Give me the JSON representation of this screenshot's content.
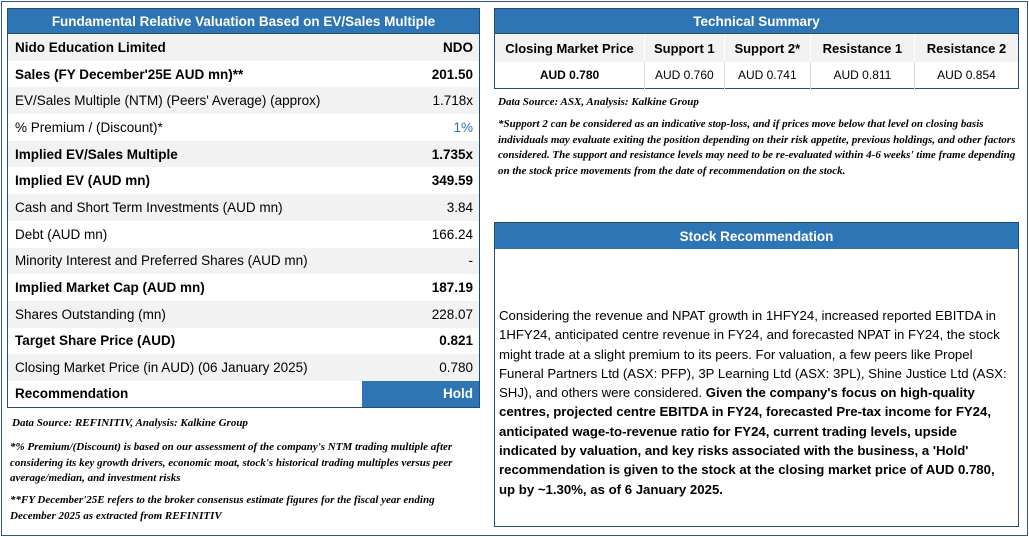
{
  "valuation": {
    "title": "Fundamental Relative Valuation Based on EV/Sales Multiple",
    "rows": [
      {
        "label": "Nido Education Limited",
        "value": "NDO"
      },
      {
        "label": "Sales (FY December'25E AUD mn)**",
        "value": "201.50"
      },
      {
        "label": "EV/Sales Multiple (NTM)  (Peers' Average) (approx)",
        "value": "1.718x"
      },
      {
        "label": "% Premium / (Discount)*",
        "value": "1%"
      },
      {
        "label": "Implied EV/Sales Multiple",
        "value": "1.735x"
      },
      {
        "label": "Implied EV (AUD mn)",
        "value": "349.59"
      },
      {
        "label": "Cash and Short Term Investments (AUD mn)",
        "value": "3.84"
      },
      {
        "label": "Debt (AUD mn)",
        "value": "166.24"
      },
      {
        "label": "Minority Interest and Preferred Shares (AUD mn)",
        "value": "-"
      },
      {
        "label": "Implied Market Cap (AUD mn)",
        "value": "187.19"
      },
      {
        "label": "Shares Outstanding (mn)",
        "value": "228.07"
      },
      {
        "label": "Target Share Price (AUD)",
        "value": "0.821"
      },
      {
        "label": "Closing Market Price (in AUD) (06 January 2025)",
        "value": "0.780"
      },
      {
        "label": "Recommendation",
        "value": "Hold"
      }
    ],
    "source": "Data Source: REFINITIV, Analysis: Kalkine Group",
    "footnote_premium": "*% Premium/(Discount) is based on our assessment of the company's NTM trading multiple after considering its key growth drivers, economic moat, stock's historical trading multiples versus peer average/median, and investment risks",
    "footnote_fy": "**FY December'25E refers to the broker consensus estimate figures for the fiscal year ending December 2025  as extracted from REFINITIV"
  },
  "technical": {
    "title": "Technical Summary",
    "headers": [
      "Closing Market Price",
      "Support 1",
      "Support 2*",
      "Resistance 1",
      "Resistance 2"
    ],
    "values": [
      "AUD 0.780",
      "AUD 0.760",
      "AUD 0.741",
      "AUD 0.811",
      "AUD 0.854"
    ],
    "source": "Data Source: ASX, Analysis: Kalkine Group",
    "note": "*Support 2 can be considered as an indicative stop-loss, and if prices move below that level on closing basis individuals may evaluate exiting the position depending on their risk appetite, previous holdings, and other factors considered. The support and resistance levels may need to be re-evaluated within 4-6 weeks' time frame depending on the stock price movements from the date of recommendation on the stock."
  },
  "recommendation": {
    "title": "Stock Recommendation",
    "text_regular": "Considering the revenue and NPAT growth in 1HFY24, increased reported EBITDA in 1HFY24, anticipated centre revenue in FY24, and forecasted NPAT in FY24, the stock might trade at a slight premium to its peers. For valuation, a few peers like Propel Funeral Partners Ltd (ASX: PFP), 3P Learning Ltd (ASX: 3PL), Shine Justice Ltd (ASX: SHJ), and others were considered. ",
    "text_bold": "Given the company's focus on high-quality centres, projected centre EBITDA in FY24, forecasted Pre-tax income for FY24, anticipated wage-to-revenue ratio for FY24, current trading levels, upside indicated by valuation, and key risks associated with the business, a 'Hold' recommendation is given to the stock at the closing market price of AUD 0.780, up by ~1.30%, as of 6 January 2025."
  },
  "colors": {
    "accent": "#2e75b6",
    "border": "#1f4e79",
    "shade": "#f2f2f2"
  }
}
